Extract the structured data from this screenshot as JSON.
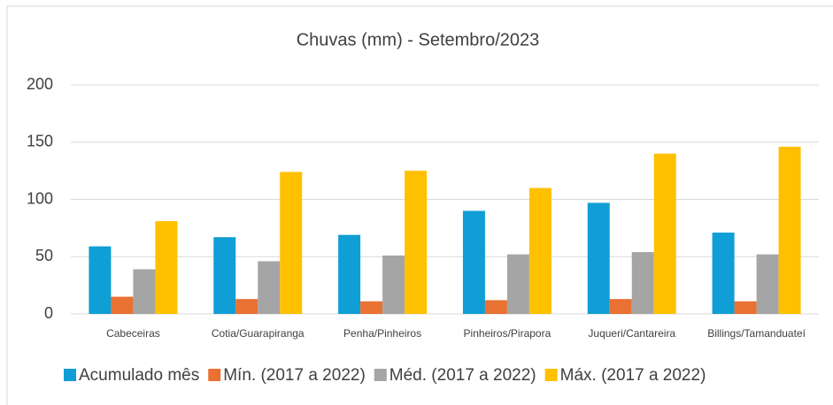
{
  "chart_data": {
    "type": "bar",
    "title": "Chuvas (mm) - Setembro/2023",
    "categories": [
      "Cabeceiras",
      "Cotia/Guarapiranga",
      "Penha/Pinheiros",
      "Pinheiros/Pirapora",
      "Juqueri/Cantareira",
      "Billings/Tamanduateí"
    ],
    "series": [
      {
        "name": "Acumulado mês",
        "color": "#0f9ed5",
        "values": [
          59,
          67,
          69,
          90,
          97,
          71
        ]
      },
      {
        "name": "Mín. (2017 a 2022)",
        "color": "#e97132",
        "values": [
          15,
          13,
          11,
          12,
          13,
          11
        ]
      },
      {
        "name": "Méd. (2017 a 2022)",
        "color": "#a5a5a5",
        "values": [
          39,
          46,
          51,
          52,
          54,
          52
        ]
      },
      {
        "name": "Máx. (2017 a 2022)",
        "color": "#ffc000",
        "values": [
          81,
          124,
          125,
          110,
          140,
          146
        ]
      }
    ],
    "ylim": [
      0,
      200
    ],
    "yticks": [
      0,
      50,
      100,
      150,
      200
    ],
    "grid": true,
    "legend": "bottom"
  }
}
